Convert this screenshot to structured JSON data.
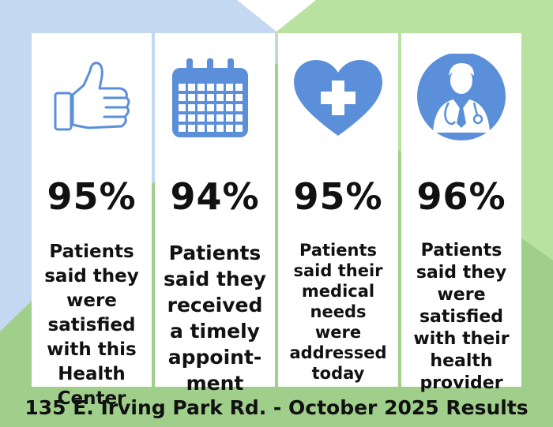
{
  "colors": {
    "icon_blue": "#5b8fd9",
    "bg_green": "#9fcf8a",
    "bg_light_green": "#b9e2a0",
    "bg_blue": "#c5d8f1"
  },
  "cards": [
    {
      "icon": "thumbs-up-icon",
      "percent": "95%",
      "lines": [
        "Patients",
        "said they",
        "were",
        "satisfied",
        "with this",
        "Health",
        "Center"
      ]
    },
    {
      "icon": "calendar-icon",
      "percent": "94%",
      "lines": [
        "Patients",
        "said they",
        "received",
        "a timely",
        "appoint-",
        "ment"
      ]
    },
    {
      "icon": "heart-cross-icon",
      "percent": "95%",
      "lines": [
        "Patients",
        "said their",
        "medical",
        "needs",
        "were",
        "addressed",
        "today"
      ]
    },
    {
      "icon": "doctor-icon",
      "percent": "96%",
      "lines": [
        "Patients",
        "said they",
        "were",
        "satisfied",
        "with their",
        "health",
        "provider"
      ]
    }
  ],
  "footer": "135 E. Irving Park Rd. - October 2025 Results"
}
